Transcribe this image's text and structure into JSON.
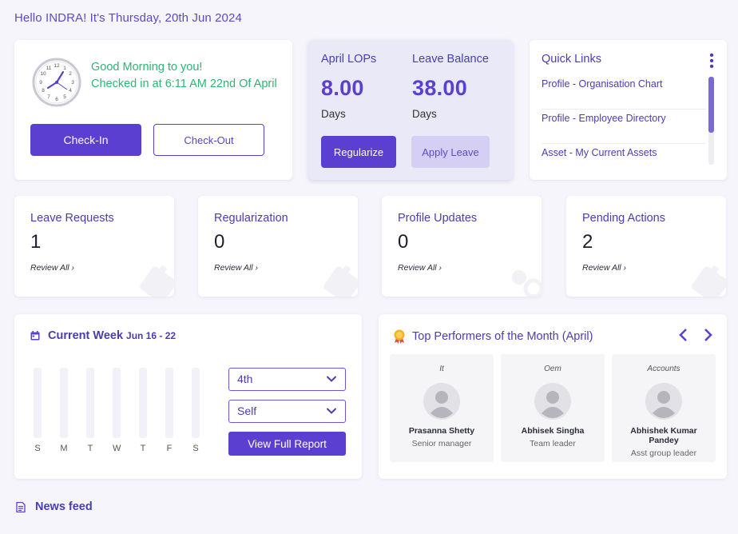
{
  "header": {
    "greeting": "Hello INDRA! It's Thursday, 20th Jun 2024"
  },
  "checkin": {
    "message_line1": "Good Morning to you!",
    "message_line2": "Checked in at 6:11 AM 22nd Of April",
    "checkin_label": "Check-In",
    "checkout_label": "Check-Out"
  },
  "leave_summary": {
    "lop_label": "April LOPs",
    "lop_value": "8.00",
    "lop_unit": "Days",
    "balance_label": "Leave Balance",
    "balance_value": "38.00",
    "balance_unit": "Days",
    "regularize_label": "Regularize",
    "apply_label": "Apply Leave"
  },
  "quick_links": {
    "title": "Quick Links",
    "items": [
      "Profile - Organisation Chart",
      "Profile - Employee Directory",
      "Asset - My Current Assets"
    ]
  },
  "stats": [
    {
      "title": "Leave Requests",
      "count": "1",
      "link": "Review All",
      "icon": "leave-icon"
    },
    {
      "title": "Regularization",
      "count": "0",
      "link": "Review All",
      "icon": "regularize-icon"
    },
    {
      "title": "Profile Updates",
      "count": "0",
      "link": "Review All",
      "icon": "profile-update-icon"
    },
    {
      "title": "Pending Actions",
      "count": "2",
      "link": "Review All",
      "icon": "pending-icon"
    }
  ],
  "current_week": {
    "title": "Current Week",
    "range": "Jun 16 - 22",
    "days": [
      "S",
      "M",
      "T",
      "W",
      "T",
      "F",
      "S"
    ],
    "week_select": "4th",
    "scope_select": "Self",
    "report_label": "View Full Report"
  },
  "top_performers": {
    "title": "Top Performers of the Month (April)",
    "people": [
      {
        "dept": "It",
        "name": "Prasanna Shetty",
        "role": "Senior manager"
      },
      {
        "dept": "Oem",
        "name": "Abhisek Singha",
        "role": "Team leader"
      },
      {
        "dept": "Accounts",
        "name": "Abhishek Kumar Pandey",
        "role": "Asst group leader"
      }
    ]
  },
  "news_feed": {
    "title": "News feed"
  },
  "colors": {
    "accent": "#5b3fd1",
    "success": "#2bb673",
    "heading": "#4a3db3",
    "background": "#f6f5fb"
  }
}
